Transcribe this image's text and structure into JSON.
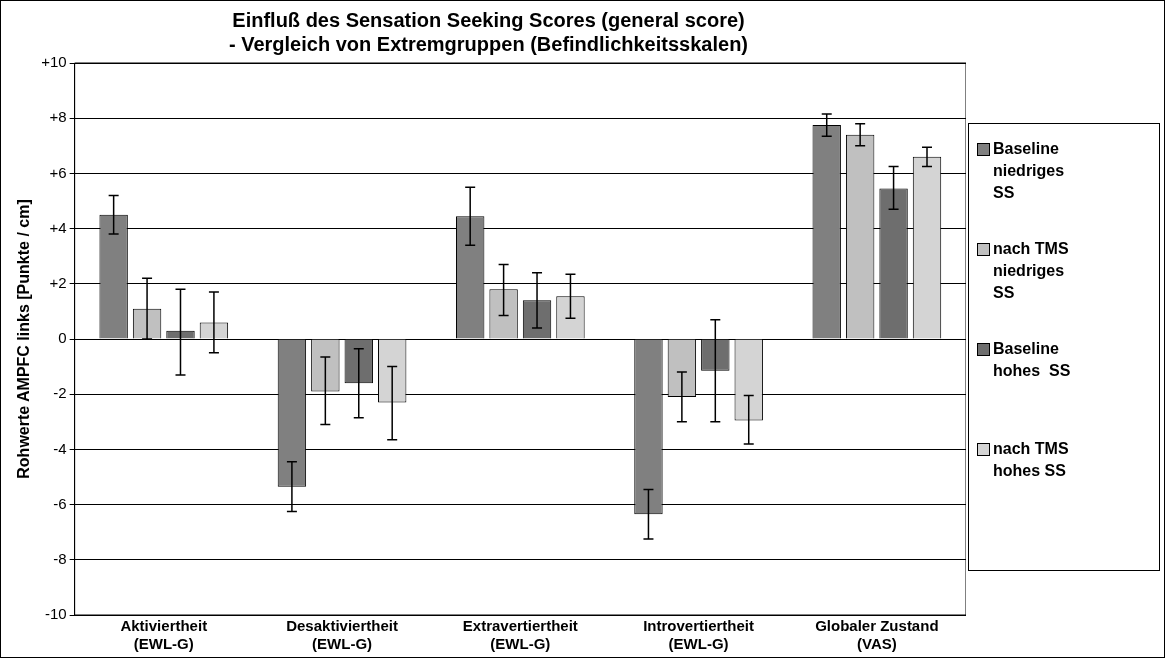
{
  "chart_data": {
    "type": "bar",
    "title": "Einfluß des Sensation Seeking Scores (general score)\n- Vergleich von Extremgruppen (Befindlichkeitsskalen)",
    "ylabel": "Rohwerte AMPFC links [Punkte / cm]",
    "categories": [
      "Aktiviertheit\n(EWL-G)",
      "Desaktiviertheit\n(EWL-G)",
      "Extravertiertheit\n(EWL-G)",
      "Introvertiertheit\n(EWL-G)",
      "Globaler Zustand\n(VAS)"
    ],
    "series": [
      {
        "name": "Baseline\nniedriges\nSS",
        "color": "#808080",
        "values": [
          4.5,
          -5.35,
          4.45,
          -6.35,
          7.75
        ],
        "errors": [
          [
            3.8,
            5.2
          ],
          [
            -6.25,
            -4.45
          ],
          [
            3.4,
            5.5
          ],
          [
            -7.25,
            -5.45
          ],
          [
            7.35,
            8.15
          ]
        ]
      },
      {
        "name": "nach TMS\nniedriges\nSS",
        "color": "#c0c0c0",
        "values": [
          1.1,
          -1.9,
          1.8,
          -2.1,
          7.4
        ],
        "errors": [
          [
            0,
            2.2
          ],
          [
            -3.1,
            -0.65
          ],
          [
            0.85,
            2.7
          ],
          [
            -3.0,
            -1.2
          ],
          [
            7.0,
            7.8
          ]
        ]
      },
      {
        "name": "Baseline\nhohes  SS",
        "color": "#6e6e6e",
        "values": [
          0.3,
          -1.6,
          1.4,
          -1.15,
          5.45
        ],
        "errors": [
          [
            -1.3,
            1.8
          ],
          [
            -2.85,
            -0.35
          ],
          [
            0.4,
            2.4
          ],
          [
            -3.0,
            0.7
          ],
          [
            4.7,
            6.25
          ]
        ]
      },
      {
        "name": "nach TMS\nhohes SS",
        "color": "#d4d4d4",
        "values": [
          0.6,
          -2.3,
          1.55,
          -2.95,
          6.6
        ],
        "errors": [
          [
            -0.5,
            1.7
          ],
          [
            -3.65,
            -1.0
          ],
          [
            0.75,
            2.35
          ],
          [
            -3.8,
            -2.05
          ],
          [
            6.25,
            6.95
          ]
        ]
      }
    ],
    "ylim": [
      -10,
      10
    ],
    "yticks": [
      -10,
      -8,
      -6,
      -4,
      -2,
      0,
      {
        "value": 2,
        "label": "+2"
      },
      {
        "value": 4,
        "label": "+4"
      },
      {
        "value": 6,
        "label": "+6"
      },
      {
        "value": 8,
        "label": "+8"
      },
      {
        "value": 10,
        "label": "+10"
      }
    ],
    "grid": "y",
    "legend": "right"
  }
}
